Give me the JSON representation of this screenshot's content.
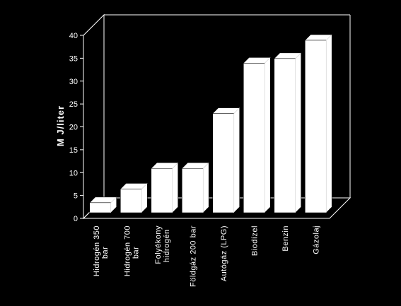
{
  "chart_data": {
    "type": "bar",
    "title": "",
    "xlabel": "",
    "ylabel": "M J/liter",
    "ylim": [
      0,
      40
    ],
    "yticks": [
      0,
      5,
      10,
      15,
      20,
      25,
      30,
      35,
      40
    ],
    "categories": [
      [
        "Hidrogén 350",
        "bar"
      ],
      [
        "Hidrogén 700",
        "bar"
      ],
      [
        "Folyékony",
        "hidrogén"
      ],
      [
        "Földgáz 200 bar"
      ],
      [
        "Autógáz (LPG)"
      ],
      [
        "Biodízel"
      ],
      [
        "Benzin"
      ],
      [
        "Gázolaj"
      ]
    ],
    "values": [
      2.5,
      5.5,
      10,
      10,
      22,
      33,
      34,
      38
    ],
    "grid": false,
    "bar_color": "#ffffff",
    "background": "#000000",
    "axis_color": "#ffffff"
  }
}
